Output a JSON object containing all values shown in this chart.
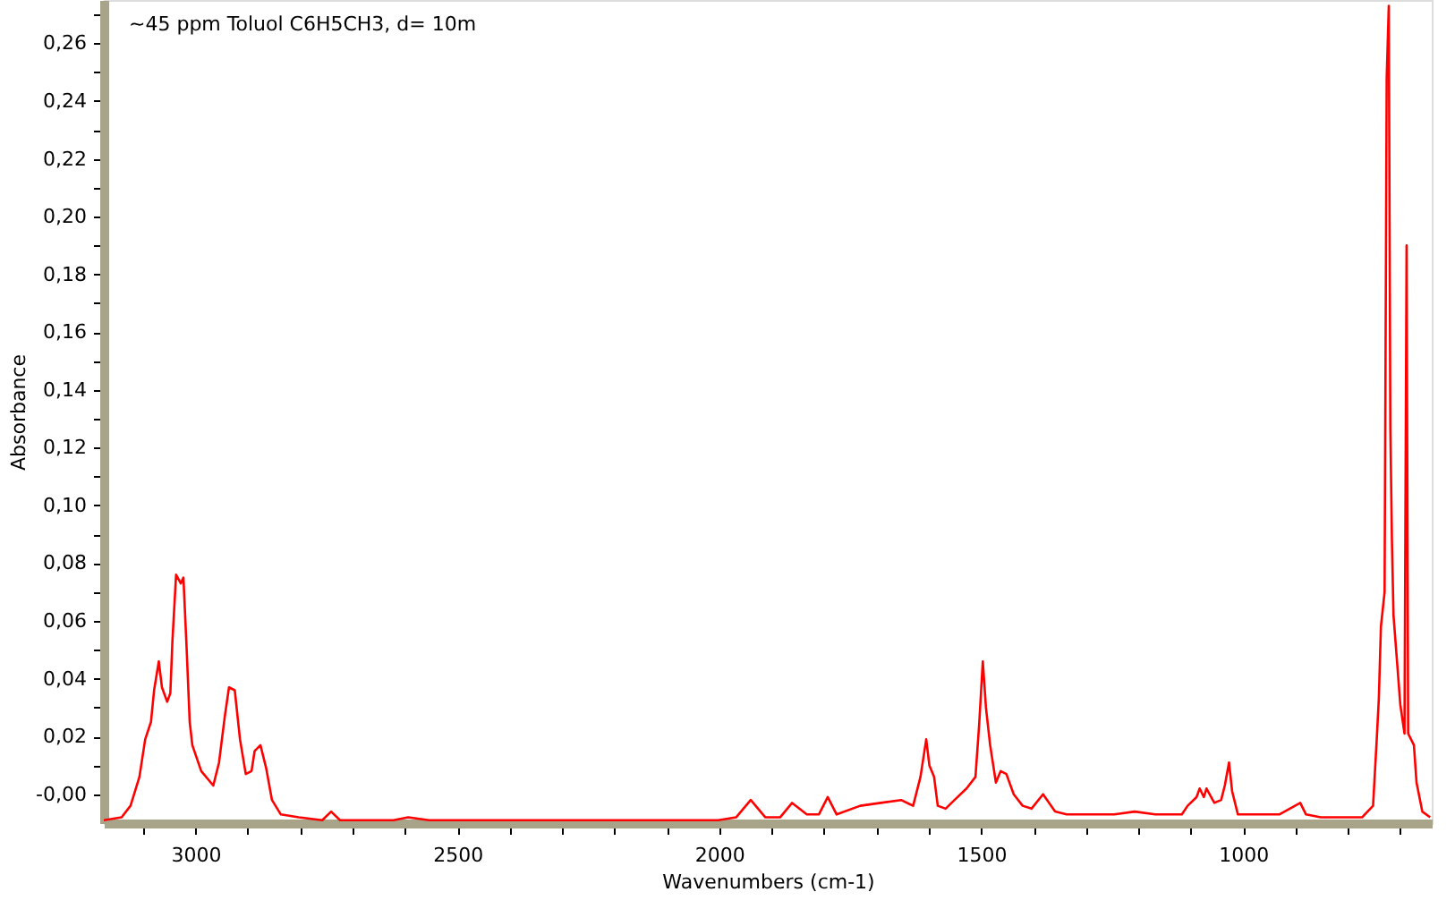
{
  "chart_data": {
    "type": "line",
    "annotations": [
      "~45 ppm Toluol C6H5CH3, d= 10m"
    ],
    "xlabel": "Wavenumbers (cm-1)",
    "ylabel": "Absorbance",
    "xlim": [
      3175,
      640
    ],
    "ylim": [
      -0.01,
      0.275
    ],
    "xticks": [
      {
        "value": 3100,
        "label": null
      },
      3000,
      {
        "value": 2900,
        "label": null
      },
      {
        "value": 2800,
        "label": null
      },
      {
        "value": 2700,
        "label": null
      },
      {
        "value": 2600,
        "label": null
      },
      2500,
      {
        "value": 2400,
        "label": null
      },
      {
        "value": 2300,
        "label": null
      },
      {
        "value": 2200,
        "label": null
      },
      {
        "value": 2100,
        "label": null
      },
      2000,
      {
        "value": 1900,
        "label": null
      },
      {
        "value": 1800,
        "label": null
      },
      {
        "value": 1700,
        "label": null
      },
      {
        "value": 1600,
        "label": null
      },
      1500,
      {
        "value": 1400,
        "label": null
      },
      {
        "value": 1300,
        "label": null
      },
      {
        "value": 1200,
        "label": null
      },
      {
        "value": 1100,
        "label": null
      },
      1000,
      {
        "value": 900,
        "label": null
      },
      {
        "value": 800,
        "label": null
      },
      {
        "value": 700,
        "label": null
      }
    ],
    "yticks": [
      {
        "value": 0,
        "label": "-0,00"
      },
      {
        "value": 0.02,
        "label": "0,02"
      },
      {
        "value": 0.04,
        "label": "0,04"
      },
      {
        "value": 0.06,
        "label": "0,06"
      },
      {
        "value": 0.08,
        "label": "0,08"
      },
      {
        "value": 0.1,
        "label": "0,10"
      },
      {
        "value": 0.12,
        "label": "0,12"
      },
      {
        "value": 0.14,
        "label": "0,14"
      },
      {
        "value": 0.16,
        "label": "0,16"
      },
      {
        "value": 0.18,
        "label": "0,18"
      },
      {
        "value": 0.2,
        "label": "0,20"
      },
      {
        "value": 0.22,
        "label": "0,22"
      },
      {
        "value": 0.24,
        "label": "0,24"
      },
      {
        "value": 0.26,
        "label": "0,26"
      },
      {
        "value": 0.01,
        "label": null
      },
      {
        "value": 0.03,
        "label": null
      },
      {
        "value": 0.05,
        "label": null
      },
      {
        "value": 0.07,
        "label": null
      },
      {
        "value": 0.09,
        "label": null
      },
      {
        "value": 0.11,
        "label": null
      },
      {
        "value": 0.13,
        "label": null
      },
      {
        "value": 0.15,
        "label": null
      },
      {
        "value": 0.17,
        "label": null
      },
      {
        "value": 0.19,
        "label": null
      },
      {
        "value": 0.21,
        "label": null
      },
      {
        "value": 0.23,
        "label": null
      },
      {
        "value": 0.25,
        "label": null
      },
      {
        "value": 0.27,
        "label": null
      }
    ],
    "grid": false,
    "marker": "none",
    "line_style": "solid",
    "series": [
      {
        "color": "#ff0000",
        "x": [
          3175,
          3141,
          3124,
          3107,
          3096,
          3085,
          3079,
          3070,
          3064,
          3054,
          3048,
          3044,
          3037,
          3028,
          3023,
          3017,
          3011,
          3006,
          2989,
          2966,
          2955,
          2944,
          2936,
          2925,
          2915,
          2904,
          2893,
          2887,
          2876,
          2865,
          2854,
          2837,
          2803,
          2758,
          2741,
          2724,
          2622,
          2594,
          2554,
          2103,
          2002,
          1968,
          1940,
          1912,
          1884,
          1861,
          1833,
          1810,
          1793,
          1776,
          1731,
          1692,
          1653,
          1630,
          1616,
          1605,
          1599,
          1590,
          1583,
          1568,
          1551,
          1528,
          1511,
          1504,
          1497,
          1491,
          1483,
          1472,
          1463,
          1452,
          1438,
          1421,
          1404,
          1382,
          1359,
          1337,
          1246,
          1207,
          1168,
          1117,
          1106,
          1089,
          1083,
          1075,
          1070,
          1055,
          1042,
          1035,
          1027,
          1021,
          1010,
          931,
          891,
          880,
          852,
          773,
          752,
          745,
          741,
          737,
          730,
          726,
          722,
          719,
          716,
          713,
          705,
          700,
          692,
          688,
          685,
          674,
          669,
          658,
          643
        ],
        "values": [
          -0.009,
          -0.008,
          -0.004,
          0.006,
          0.019,
          0.025,
          0.036,
          0.046,
          0.037,
          0.032,
          0.035,
          0.053,
          0.076,
          0.073,
          0.075,
          0.051,
          0.025,
          0.017,
          0.008,
          0.003,
          0.011,
          0.027,
          0.037,
          0.036,
          0.019,
          0.007,
          0.008,
          0.015,
          0.017,
          0.009,
          -0.002,
          -0.007,
          -0.008,
          -0.009,
          -0.006,
          -0.009,
          -0.009,
          -0.008,
          -0.009,
          -0.009,
          -0.009,
          -0.008,
          -0.002,
          -0.008,
          -0.008,
          -0.003,
          -0.007,
          -0.007,
          -0.001,
          -0.007,
          -0.004,
          -0.003,
          -0.002,
          -0.004,
          0.006,
          0.019,
          0.01,
          0.006,
          -0.004,
          -0.005,
          -0.002,
          0.002,
          0.006,
          0.024,
          0.046,
          0.03,
          0.017,
          0.004,
          0.008,
          0.007,
          0.0,
          -0.004,
          -0.005,
          0.0,
          -0.006,
          -0.007,
          -0.007,
          -0.006,
          -0.007,
          -0.007,
          -0.004,
          -0.001,
          0.002,
          -0.001,
          0.002,
          -0.003,
          -0.002,
          0.003,
          0.011,
          0.001,
          -0.007,
          -0.007,
          -0.003,
          -0.007,
          -0.008,
          -0.008,
          -0.004,
          0.019,
          0.033,
          0.058,
          0.07,
          0.248,
          0.273,
          0.127,
          0.088,
          0.062,
          0.043,
          0.031,
          0.021,
          0.19,
          0.021,
          0.017,
          0.004,
          -0.006,
          -0.008
        ]
      }
    ]
  }
}
